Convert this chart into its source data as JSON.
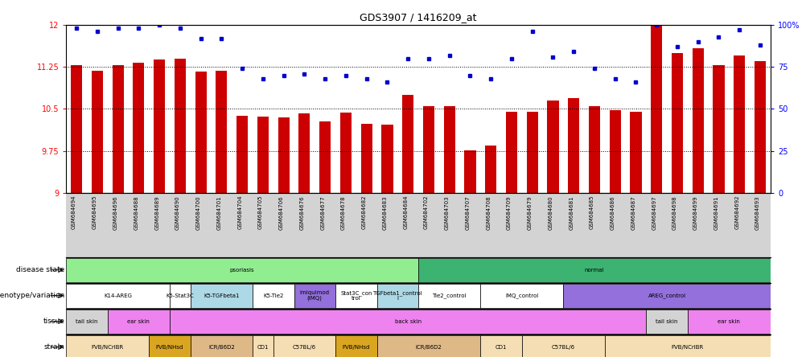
{
  "title": "GDS3907 / 1416209_at",
  "samples": [
    "GSM684694",
    "GSM684695",
    "GSM684696",
    "GSM684688",
    "GSM684689",
    "GSM684690",
    "GSM684700",
    "GSM684701",
    "GSM684704",
    "GSM684705",
    "GSM684706",
    "GSM684676",
    "GSM684677",
    "GSM684678",
    "GSM684682",
    "GSM684683",
    "GSM684684",
    "GSM684702",
    "GSM684703",
    "GSM684707",
    "GSM684708",
    "GSM684709",
    "GSM684679",
    "GSM684680",
    "GSM684681",
    "GSM684685",
    "GSM684686",
    "GSM684687",
    "GSM684697",
    "GSM684698",
    "GSM684699",
    "GSM684691",
    "GSM684692",
    "GSM684693"
  ],
  "bar_values": [
    11.28,
    11.18,
    11.28,
    11.33,
    11.38,
    11.4,
    11.17,
    11.18,
    10.38,
    10.36,
    10.35,
    10.42,
    10.28,
    10.43,
    10.24,
    10.22,
    10.75,
    10.55,
    10.55,
    9.76,
    9.84,
    10.45,
    10.45,
    10.65,
    10.7,
    10.55,
    10.48,
    10.45,
    12.0,
    11.5,
    11.58,
    11.28,
    11.45,
    11.36
  ],
  "percentile_values": [
    98,
    96,
    98,
    98,
    100,
    98,
    92,
    92,
    74,
    68,
    70,
    71,
    68,
    70,
    68,
    66,
    80,
    80,
    82,
    70,
    68,
    80,
    96,
    81,
    84,
    74,
    68,
    66,
    100,
    87,
    90,
    93,
    97,
    88
  ],
  "ymin": 9.0,
  "ymax": 12.0,
  "yticks": [
    9.0,
    9.75,
    10.5,
    11.25,
    12.0
  ],
  "ytick_labels": [
    "9",
    "9.75",
    "10.5",
    "11.25",
    "12"
  ],
  "right_yticks": [
    0,
    25,
    50,
    75,
    100
  ],
  "right_ytick_labels": [
    "0",
    "25",
    "50",
    "75",
    "100%"
  ],
  "bar_color": "#cc0000",
  "dot_color": "#0000cc",
  "background_color": "#ffffff",
  "disease_state_rows": [
    {
      "label": "psoriasis",
      "start": 0,
      "end": 17,
      "color": "#90ee90"
    },
    {
      "label": "normal",
      "start": 17,
      "end": 34,
      "color": "#3cb371"
    }
  ],
  "genotype_rows": [
    {
      "label": "K14-AREG",
      "start": 0,
      "end": 5,
      "color": "#ffffff"
    },
    {
      "label": "K5-Stat3C",
      "start": 5,
      "end": 6,
      "color": "#ffffff"
    },
    {
      "label": "K5-TGFbeta1",
      "start": 6,
      "end": 9,
      "color": "#add8e6"
    },
    {
      "label": "K5-Tie2",
      "start": 9,
      "end": 11,
      "color": "#ffffff"
    },
    {
      "label": "imiquimod\n(IMQ)",
      "start": 11,
      "end": 13,
      "color": "#9370db"
    },
    {
      "label": "Stat3C_con\ntrol",
      "start": 13,
      "end": 15,
      "color": "#ffffff"
    },
    {
      "label": "TGFbeta1_control\nl",
      "start": 15,
      "end": 17,
      "color": "#add8e6"
    },
    {
      "label": "Tie2_control",
      "start": 17,
      "end": 20,
      "color": "#ffffff"
    },
    {
      "label": "IMQ_control",
      "start": 20,
      "end": 24,
      "color": "#ffffff"
    },
    {
      "label": "AREG_control",
      "start": 24,
      "end": 34,
      "color": "#9370db"
    }
  ],
  "tissue_rows": [
    {
      "label": "tail skin",
      "start": 0,
      "end": 2,
      "color": "#d3d3d3"
    },
    {
      "label": "ear skin",
      "start": 2,
      "end": 5,
      "color": "#ee82ee"
    },
    {
      "label": "back skin",
      "start": 5,
      "end": 28,
      "color": "#ee82ee"
    },
    {
      "label": "tail skin",
      "start": 28,
      "end": 30,
      "color": "#d3d3d3"
    },
    {
      "label": "ear skin",
      "start": 30,
      "end": 34,
      "color": "#ee82ee"
    }
  ],
  "strain_rows": [
    {
      "label": "FVB/NCrIBR",
      "start": 0,
      "end": 4,
      "color": "#f5deb3"
    },
    {
      "label": "FVB/NHsd",
      "start": 4,
      "end": 6,
      "color": "#daa520"
    },
    {
      "label": "ICR/B6D2",
      "start": 6,
      "end": 9,
      "color": "#deb887"
    },
    {
      "label": "CD1",
      "start": 9,
      "end": 10,
      "color": "#f5deb3"
    },
    {
      "label": "C57BL/6",
      "start": 10,
      "end": 13,
      "color": "#f5deb3"
    },
    {
      "label": "FVB/NHsd",
      "start": 13,
      "end": 15,
      "color": "#daa520"
    },
    {
      "label": "ICR/B6D2",
      "start": 15,
      "end": 20,
      "color": "#deb887"
    },
    {
      "label": "CD1",
      "start": 20,
      "end": 22,
      "color": "#f5deb3"
    },
    {
      "label": "C57BL/6",
      "start": 22,
      "end": 26,
      "color": "#f5deb3"
    },
    {
      "label": "FVB/NCrIBR",
      "start": 26,
      "end": 34,
      "color": "#f5deb3"
    }
  ],
  "row_labels": [
    "disease state",
    "genotype/variation",
    "tissue",
    "strain"
  ]
}
